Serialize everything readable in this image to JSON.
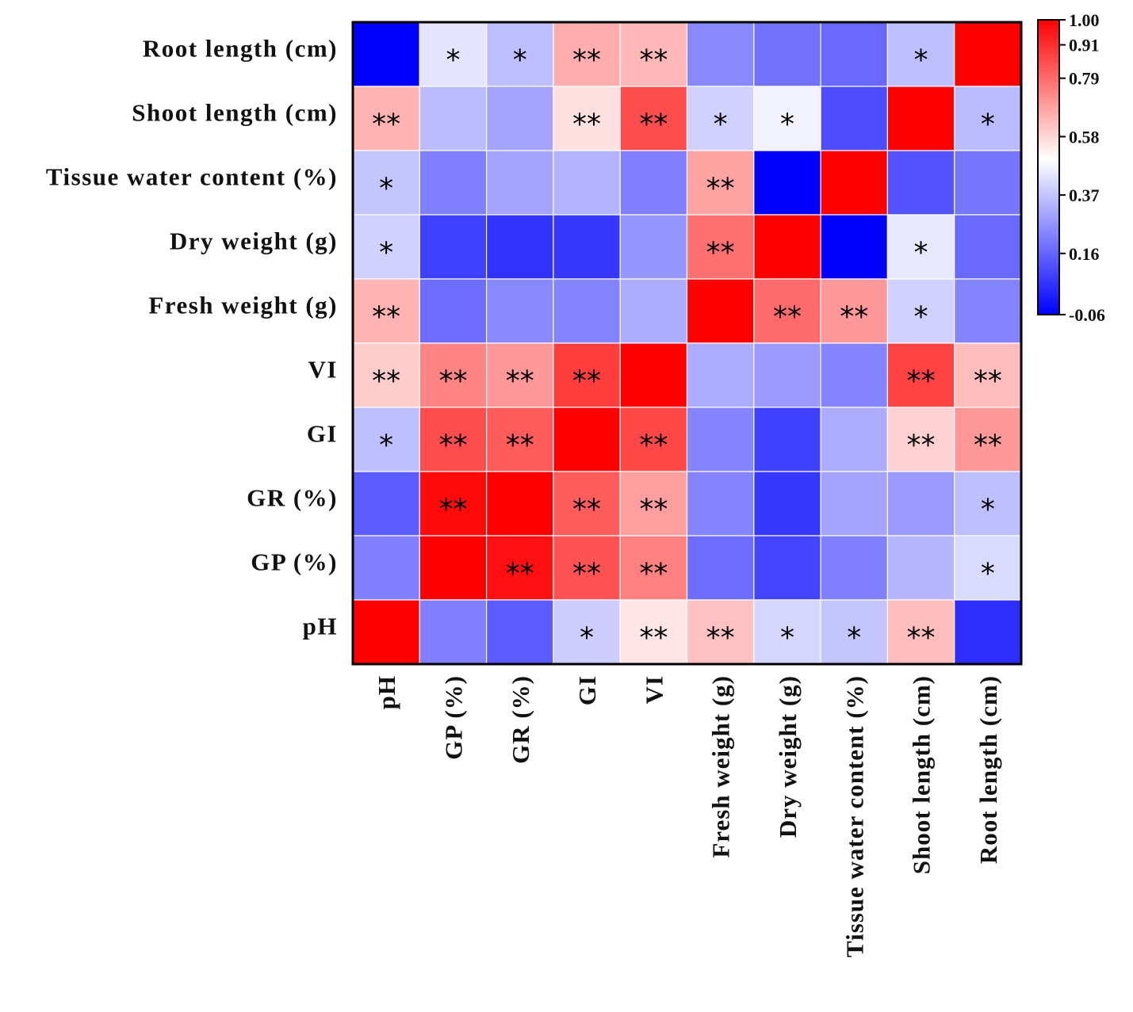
{
  "chart_data": {
    "type": "heatmap",
    "title": "",
    "rows": [
      "Root length (cm)",
      "Shoot length (cm)",
      "Tissue water content (%)",
      "Dry weight (g)",
      "Fresh weight (g)",
      "VI",
      "GI",
      "GR (%)",
      "GP (%)",
      "pH"
    ],
    "columns": [
      "pH",
      "GP (%)",
      "GR (%)",
      "GI",
      "VI",
      "Fresh weight (g)",
      "Dry weight (g)",
      "Tissue water content (%)",
      "Shoot length (cm)",
      "Root length (cm)"
    ],
    "values": [
      [
        -0.06,
        0.44,
        0.36,
        0.66,
        0.64,
        0.24,
        0.19,
        0.17,
        0.36,
        1.0
      ],
      [
        0.65,
        0.35,
        0.3,
        0.56,
        0.85,
        0.4,
        0.47,
        0.11,
        1.0,
        0.35
      ],
      [
        0.37,
        0.22,
        0.3,
        0.33,
        0.22,
        0.68,
        -0.06,
        1.0,
        0.12,
        0.2
      ],
      [
        0.4,
        0.08,
        0.05,
        0.06,
        0.27,
        0.78,
        1.0,
        -0.06,
        0.45,
        0.17
      ],
      [
        0.65,
        0.18,
        0.24,
        0.23,
        0.32,
        1.0,
        0.79,
        0.7,
        0.4,
        0.23
      ],
      [
        0.6,
        0.74,
        0.7,
        0.88,
        1.0,
        0.32,
        0.28,
        0.23,
        0.87,
        0.63
      ],
      [
        0.36,
        0.85,
        0.82,
        1.0,
        0.86,
        0.23,
        0.08,
        0.32,
        0.59,
        0.7
      ],
      [
        0.14,
        0.98,
        1.0,
        0.82,
        0.69,
        0.23,
        0.06,
        0.3,
        0.28,
        0.36
      ],
      [
        0.22,
        1.0,
        0.97,
        0.84,
        0.75,
        0.18,
        0.09,
        0.22,
        0.34,
        0.42
      ],
      [
        1.0,
        0.22,
        0.14,
        0.39,
        0.55,
        0.62,
        0.41,
        0.37,
        0.63,
        0.04
      ]
    ],
    "significance": [
      [
        "",
        "*",
        "*",
        "**",
        "**",
        "",
        "",
        "",
        "*",
        ""
      ],
      [
        "**",
        "",
        "",
        "**",
        "**",
        "*",
        "*",
        "",
        "",
        "*"
      ],
      [
        "*",
        "",
        "",
        "",
        "",
        "**",
        "",
        "",
        "",
        ""
      ],
      [
        "*",
        "",
        "",
        "",
        "",
        "**",
        "",
        "",
        "*",
        ""
      ],
      [
        "**",
        "",
        "",
        "",
        "",
        "",
        "**",
        "**",
        "*",
        ""
      ],
      [
        "**",
        "**",
        "**",
        "**",
        "",
        "",
        "",
        "",
        "**",
        "**"
      ],
      [
        "*",
        "**",
        "**",
        "",
        "**",
        "",
        "",
        "",
        "**",
        "**"
      ],
      [
        "",
        "**",
        "",
        "**",
        "**",
        "",
        "",
        "",
        "",
        "*"
      ],
      [
        "",
        "",
        "**",
        "**",
        "**",
        "",
        "",
        "",
        "",
        "*"
      ],
      [
        "",
        "",
        "",
        "*",
        "**",
        "**",
        "*",
        "*",
        "**",
        ""
      ]
    ],
    "colorbar": {
      "min": -0.06,
      "max": 1.0,
      "ticks": [
        "1.00",
        "0.91",
        "0.79",
        "0.58",
        "0.37",
        "0.16",
        "-0.06"
      ],
      "tick_values": [
        1.0,
        0.91,
        0.79,
        0.58,
        0.37,
        0.16,
        -0.06
      ],
      "low_color": "#0000ff",
      "mid_color": "#ffffff",
      "high_color": "#ff0000",
      "mid_value": 0.5
    }
  }
}
